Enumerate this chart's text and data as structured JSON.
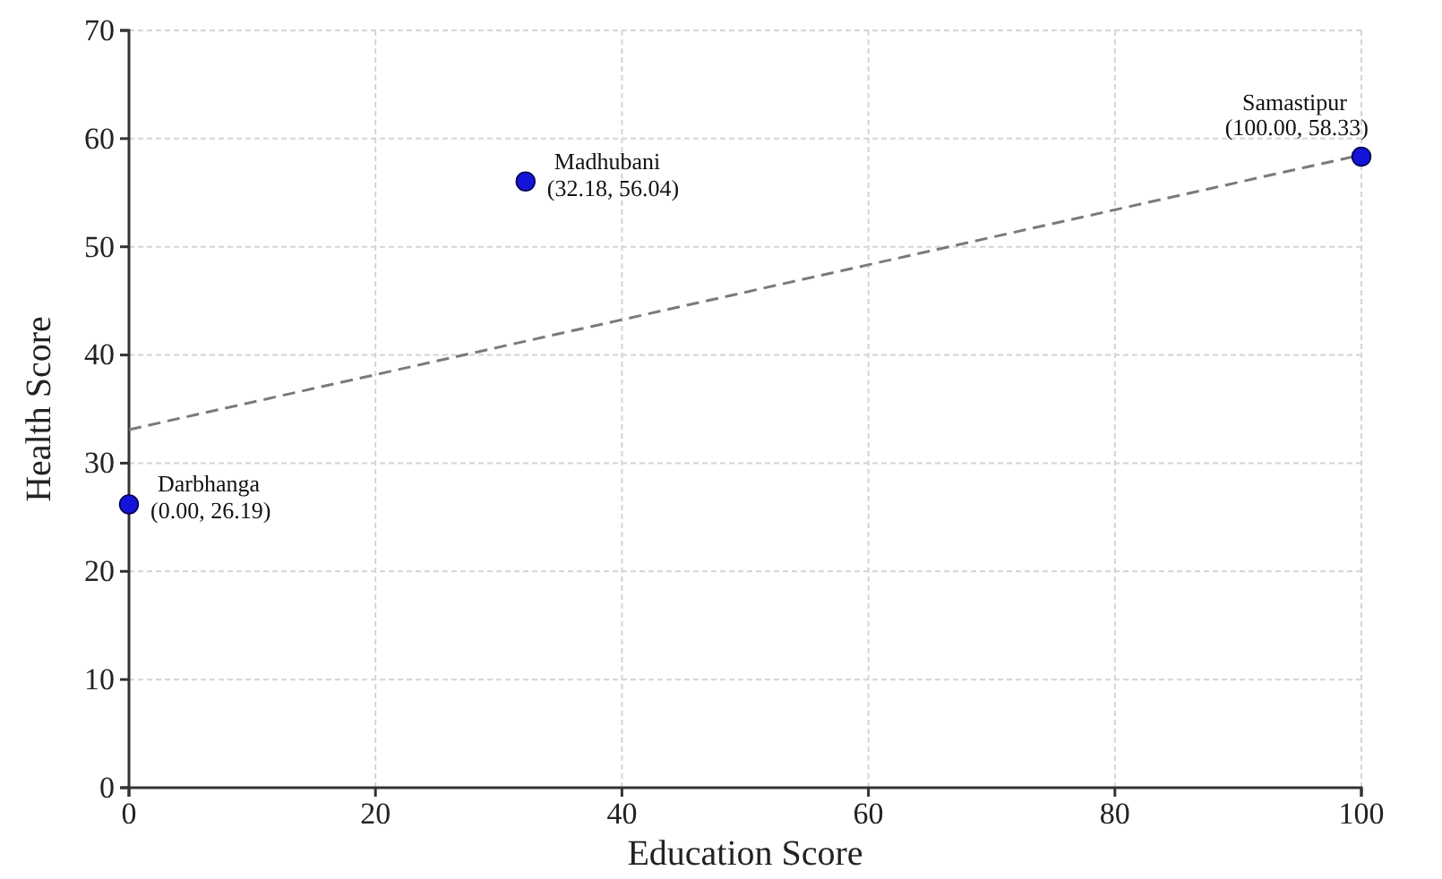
{
  "chart_data": {
    "type": "scatter",
    "xlabel": "Education Score",
    "ylabel": "Health Score",
    "xlim": [
      0,
      100
    ],
    "ylim": [
      0,
      70
    ],
    "xticks": [
      0,
      20,
      40,
      60,
      80,
      100
    ],
    "yticks": [
      0,
      10,
      20,
      30,
      40,
      50,
      60,
      70
    ],
    "grid": true,
    "marker": "circle",
    "series": [
      {
        "color": "#1414d8",
        "x": [
          0,
          32.18,
          100
        ],
        "values": [
          26.19,
          56.04,
          58.33
        ],
        "value_labels": [
          "(0.00, 26.19)",
          "(32.18, 56.04)",
          "(100.00, 58.33)"
        ]
      },
      {
        "type": "line",
        "color": "#7a7a7a",
        "line_style": "dashed",
        "marker": "none",
        "x": [
          0,
          100
        ],
        "values": [
          33.1,
          58.5
        ]
      }
    ],
    "annotations": [
      {
        "text": "Darbhanga",
        "x": 0,
        "y": 26.19
      },
      {
        "text": "Madhubani",
        "x": 32.18,
        "y": 56.04
      },
      {
        "text": "Samastipur",
        "x": 100,
        "y": 58.33
      }
    ]
  }
}
